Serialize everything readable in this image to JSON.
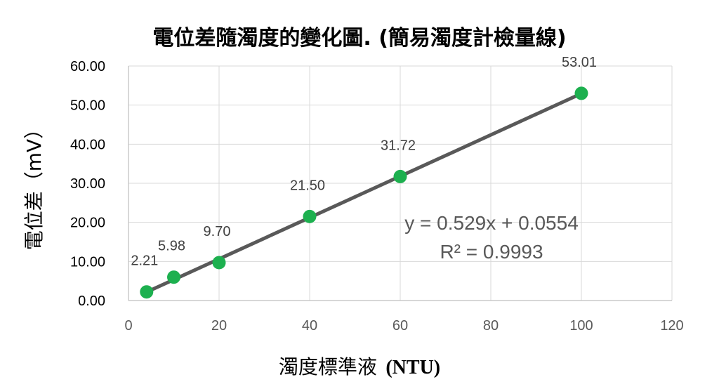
{
  "chart_data": {
    "type": "scatter",
    "title": "電位差隨濁度的變化圖. (簡易濁度計檢量線)",
    "xlabel_main": "濁度標準液",
    "xlabel_unit": "(NTU)",
    "ylabel": "電位差（mV）",
    "xlim": [
      0,
      120
    ],
    "ylim": [
      0,
      60
    ],
    "x_ticks": [
      "0",
      "20",
      "40",
      "60",
      "80",
      "100",
      "120"
    ],
    "y_ticks": [
      "0.00",
      "10.00",
      "20.00",
      "30.00",
      "40.00",
      "50.00",
      "60.00"
    ],
    "grid": true,
    "series": [
      {
        "x": [
          4,
          10,
          20,
          40,
          60,
          100
        ],
        "y": [
          2.21,
          5.98,
          9.7,
          21.5,
          31.72,
          53.01
        ],
        "labels": [
          "2.21",
          "5.98",
          "9.70",
          "21.50",
          "31.72",
          "53.01"
        ],
        "color": "#1db04f"
      }
    ],
    "trendline": {
      "type": "linear",
      "slope": 0.529,
      "intercept": 0.0554,
      "x_range": [
        4,
        100
      ],
      "color": "#595959",
      "equation": "y = 0.529x + 0.0554",
      "r_squared": "R² = 0.9993"
    }
  }
}
